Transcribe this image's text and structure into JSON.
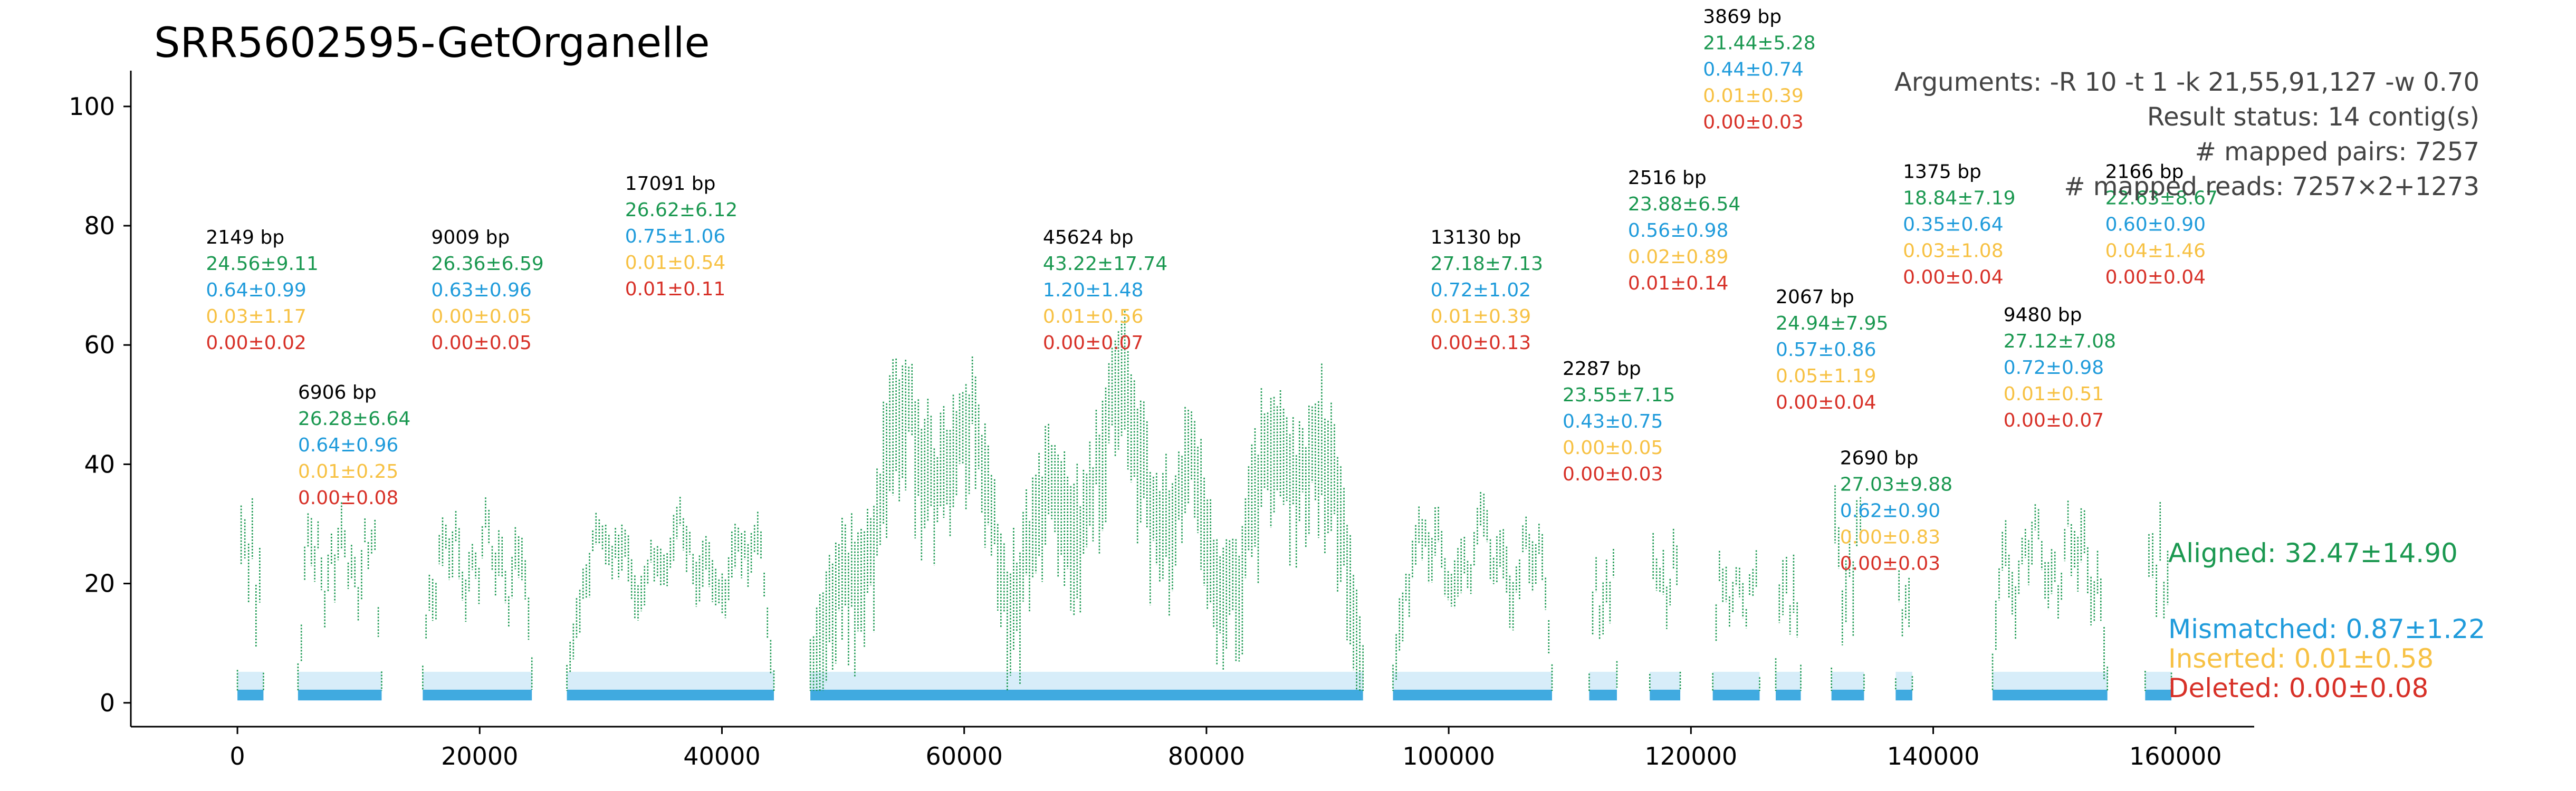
{
  "colors": {
    "aligned": "#1a9850",
    "mismatched": "#1f9bdb",
    "inserted": "#f7c143",
    "deleted": "#d73027",
    "length": "#000000",
    "info": "#444444"
  },
  "chart_data": {
    "type": "scatter",
    "title": "SRR5602595-GetOrganelle",
    "xlabel": "",
    "ylabel": "",
    "xlim": [
      -8800,
      166500
    ],
    "ylim": [
      -4,
      106
    ],
    "xticks": [
      0,
      20000,
      40000,
      60000,
      80000,
      100000,
      120000,
      140000,
      160000
    ],
    "xtick_labels": [
      "0",
      "20000",
      "40000",
      "60000",
      "80000",
      "100000",
      "120000",
      "140000",
      "160000"
    ],
    "yticks": [
      0,
      20,
      40,
      60,
      80,
      100
    ],
    "ytick_labels": [
      "0",
      "20",
      "40",
      "60",
      "80",
      "100"
    ],
    "grid": false,
    "info_lines": [
      "Arguments: -R 10 -t 1 -k 21,55,91,127 -w 0.70",
      "Result status: 14 contig(s)",
      "# mapped pairs: 7257",
      "# mapped reads: 7257×2+1273"
    ],
    "legend": [
      {
        "key": "aligned",
        "label": "Aligned: 32.47±14.90"
      },
      {
        "key": "mismatched",
        "label": "Mismatched: 0.87±1.22"
      },
      {
        "key": "inserted",
        "label": "Inserted: 0.01±0.58"
      },
      {
        "key": "deleted",
        "label": "Deleted: 0.00±0.08"
      }
    ],
    "contigs": [
      {
        "start": 0,
        "length": 2149,
        "length_label": "2149 bp",
        "aligned": "24.56±9.11",
        "mismatched": "0.64±0.99",
        "inserted": "0.03±1.17",
        "deleted": "0.00±0.02",
        "label_x": -2600,
        "label_y": 77
      },
      {
        "start": 5000,
        "length": 6906,
        "length_label": "6906 bp",
        "aligned": "26.28±6.64",
        "mismatched": "0.64±0.96",
        "inserted": "0.01±0.25",
        "deleted": "0.00±0.08",
        "label_x": 5000,
        "label_y": 51
      },
      {
        "start": 15300,
        "length": 9009,
        "length_label": "9009 bp",
        "aligned": "26.36±6.59",
        "mismatched": "0.63±0.96",
        "inserted": "0.00±0.05",
        "deleted": "0.00±0.05",
        "label_x": 16000,
        "label_y": 77
      },
      {
        "start": 27200,
        "length": 17091,
        "length_label": "17091 bp",
        "aligned": "26.62±6.12",
        "mismatched": "0.75±1.06",
        "inserted": "0.01±0.54",
        "deleted": "0.01±0.11",
        "label_x": 32000,
        "label_y": 86
      },
      {
        "start": 47300,
        "length": 45624,
        "length_label": "45624 bp",
        "aligned": "43.22±17.74",
        "mismatched": "1.20±1.48",
        "inserted": "0.01±0.56",
        "deleted": "0.00±0.07",
        "label_x": 66500,
        "label_y": 77
      },
      {
        "start": 95400,
        "length": 13130,
        "length_label": "13130 bp",
        "aligned": "27.18±7.13",
        "mismatched": "0.72±1.02",
        "inserted": "0.01±0.39",
        "deleted": "0.00±0.13",
        "label_x": 98500,
        "label_y": 77
      },
      {
        "start": 111600,
        "length": 2287,
        "length_label": "2287 bp",
        "aligned": "23.55±7.15",
        "mismatched": "0.43±0.75",
        "inserted": "0.00±0.05",
        "deleted": "0.00±0.03",
        "label_x": 109400,
        "label_y": 55
      },
      {
        "start": 116600,
        "length": 2516,
        "length_label": "2516 bp",
        "aligned": "23.88±6.54",
        "mismatched": "0.56±0.98",
        "inserted": "0.02±0.89",
        "deleted": "0.01±0.14",
        "label_x": 114800,
        "label_y": 87
      },
      {
        "start": 121800,
        "length": 3869,
        "length_label": "3869 bp",
        "aligned": "21.44±5.28",
        "mismatched": "0.44±0.74",
        "inserted": "0.01±0.39",
        "deleted": "0.00±0.03",
        "label_x": 121000,
        "label_y": 114
      },
      {
        "start": 127000,
        "length": 2067,
        "length_label": "2067 bp",
        "aligned": "24.94±7.95",
        "mismatched": "0.57±0.86",
        "inserted": "0.05±1.19",
        "deleted": "0.00±0.04",
        "label_x": 127000,
        "label_y": 67
      },
      {
        "start": 131600,
        "length": 2690,
        "length_label": "2690 bp",
        "aligned": "27.03±9.88",
        "mismatched": "0.62±0.90",
        "inserted": "0.00±0.83",
        "deleted": "0.00±0.03",
        "label_x": 132300,
        "label_y": 40
      },
      {
        "start": 136900,
        "length": 1375,
        "length_label": "1375 bp",
        "aligned": "18.84±7.19",
        "mismatched": "0.35±0.64",
        "inserted": "0.03±1.08",
        "deleted": "0.00±0.04",
        "label_x": 137500,
        "label_y": 88
      },
      {
        "start": 144900,
        "length": 9480,
        "length_label": "9480 bp",
        "aligned": "27.12±7.08",
        "mismatched": "0.72±0.98",
        "inserted": "0.01±0.51",
        "deleted": "0.00±0.07",
        "label_x": 145800,
        "label_y": 64
      },
      {
        "start": 157500,
        "length": 2166,
        "length_label": "2166 bp",
        "aligned": "22.63±8.67",
        "mismatched": "0.60±0.90",
        "inserted": "0.04±1.46",
        "deleted": "0.00±0.04",
        "label_x": 154200,
        "label_y": 88
      }
    ]
  }
}
